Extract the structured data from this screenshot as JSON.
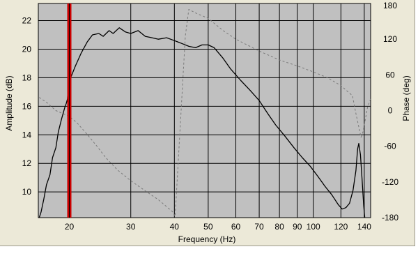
{
  "chart_data": {
    "type": "line",
    "xlabel": "Frequency (Hz)",
    "ylabel_left": "Amplitude (dB)",
    "ylabel_right": "Phase (deg)",
    "x_scale": "log",
    "xlim": [
      16.3,
      146
    ],
    "ylim_left": [
      8.2,
      23.2
    ],
    "ylim_right": [
      -180,
      180
    ],
    "grid": true,
    "x_ticks": [
      20,
      30,
      40,
      50,
      60,
      70,
      80,
      90,
      100,
      120,
      140
    ],
    "x_tick_labels": [
      "20",
      "30",
      "40",
      "50",
      "60",
      "70",
      "80",
      "90",
      "100",
      "120",
      "140"
    ],
    "y_left_ticks": [
      10,
      12,
      14,
      16,
      18,
      20,
      22
    ],
    "y_left_tick_labels": [
      "10",
      "12",
      "14",
      "16",
      "18",
      "20",
      "22"
    ],
    "y_right_ticks": [
      -180,
      -120,
      -60,
      0,
      60,
      120,
      180
    ],
    "y_right_tick_labels": [
      "-180",
      "-120",
      "-60",
      "0",
      "60",
      "120",
      "180"
    ],
    "marker_x": 20,
    "colors": {
      "plot_background": "#c0c0c0",
      "grid": "#000000",
      "amplitude": "#000000",
      "phase": "#7a7a7a",
      "marker": "#cc0000"
    },
    "series": [
      {
        "role": "amplitude",
        "axis": "left",
        "style": "solid",
        "points": [
          [
            16.4,
            8.2
          ],
          [
            16.6,
            8.6
          ],
          [
            16.9,
            9.5
          ],
          [
            17.2,
            10.5
          ],
          [
            17.6,
            11.2
          ],
          [
            17.9,
            12.4
          ],
          [
            18.3,
            13.1
          ],
          [
            18.6,
            14.2
          ],
          [
            19.0,
            15.1
          ],
          [
            19.4,
            15.9
          ],
          [
            19.6,
            16.2
          ],
          [
            19.75,
            16.5
          ],
          [
            19.85,
            17.3
          ],
          [
            20.1,
            17.9
          ],
          [
            20.8,
            18.8
          ],
          [
            21.6,
            19.7
          ],
          [
            22.5,
            20.5
          ],
          [
            23.3,
            21.0
          ],
          [
            24.3,
            21.1
          ],
          [
            25.0,
            20.9
          ],
          [
            26.0,
            21.3
          ],
          [
            26.7,
            21.1
          ],
          [
            27.8,
            21.5
          ],
          [
            29.0,
            21.2
          ],
          [
            30.0,
            21.1
          ],
          [
            31.5,
            21.3
          ],
          [
            33.0,
            20.9
          ],
          [
            34.5,
            20.8
          ],
          [
            36.0,
            20.7
          ],
          [
            38.0,
            20.8
          ],
          [
            40.0,
            20.6
          ],
          [
            42.0,
            20.4
          ],
          [
            44.0,
            20.2
          ],
          [
            46.0,
            20.1
          ],
          [
            48.0,
            20.3
          ],
          [
            50.0,
            20.3
          ],
          [
            52.0,
            20.1
          ],
          [
            55.0,
            19.4
          ],
          [
            58.0,
            18.6
          ],
          [
            62.0,
            17.8
          ],
          [
            66.0,
            17.1
          ],
          [
            70.0,
            16.4
          ],
          [
            74.0,
            15.5
          ],
          [
            78.0,
            14.7
          ],
          [
            83.0,
            13.9
          ],
          [
            88.0,
            13.1
          ],
          [
            93.0,
            12.4
          ],
          [
            98.0,
            11.8
          ],
          [
            103.0,
            11.1
          ],
          [
            108.0,
            10.4
          ],
          [
            113.0,
            9.8
          ],
          [
            118.0,
            9.1
          ],
          [
            121.0,
            8.8
          ],
          [
            124.0,
            8.9
          ],
          [
            127.0,
            9.2
          ],
          [
            130.0,
            10.1
          ],
          [
            132.5,
            11.5
          ],
          [
            134.0,
            13.0
          ],
          [
            135.0,
            13.4
          ],
          [
            136.5,
            12.6
          ],
          [
            138.0,
            10.9
          ],
          [
            139.5,
            9.0
          ],
          [
            140.5,
            8.2
          ]
        ]
      },
      {
        "role": "phase",
        "axis": "right",
        "style": "dashed",
        "points": [
          [
            16.4,
            22
          ],
          [
            17.2,
            14
          ],
          [
            18.3,
            0
          ],
          [
            20.0,
            -10
          ],
          [
            21.0,
            -20
          ],
          [
            22.5,
            -40
          ],
          [
            24.0,
            -60
          ],
          [
            25.5,
            -80
          ],
          [
            27.5,
            -100
          ],
          [
            30.0,
            -118
          ],
          [
            33.0,
            -135
          ],
          [
            36.0,
            -150
          ],
          [
            39.5,
            -170
          ],
          [
            40.2,
            -178
          ],
          [
            43.0,
            125
          ],
          [
            44.0,
            170
          ],
          [
            46.0,
            164
          ],
          [
            50.0,
            155
          ],
          [
            55.0,
            135
          ],
          [
            60.0,
            120
          ],
          [
            70.0,
            100
          ],
          [
            80.0,
            85
          ],
          [
            90.0,
            75
          ],
          [
            100.0,
            65
          ],
          [
            110.0,
            55
          ],
          [
            120.0,
            42
          ],
          [
            129.5,
            25
          ],
          [
            132.5,
            -5
          ],
          [
            137.0,
            -45
          ],
          [
            139.0,
            -35
          ],
          [
            143.0,
            5
          ],
          [
            146.0,
            20
          ]
        ]
      }
    ]
  }
}
